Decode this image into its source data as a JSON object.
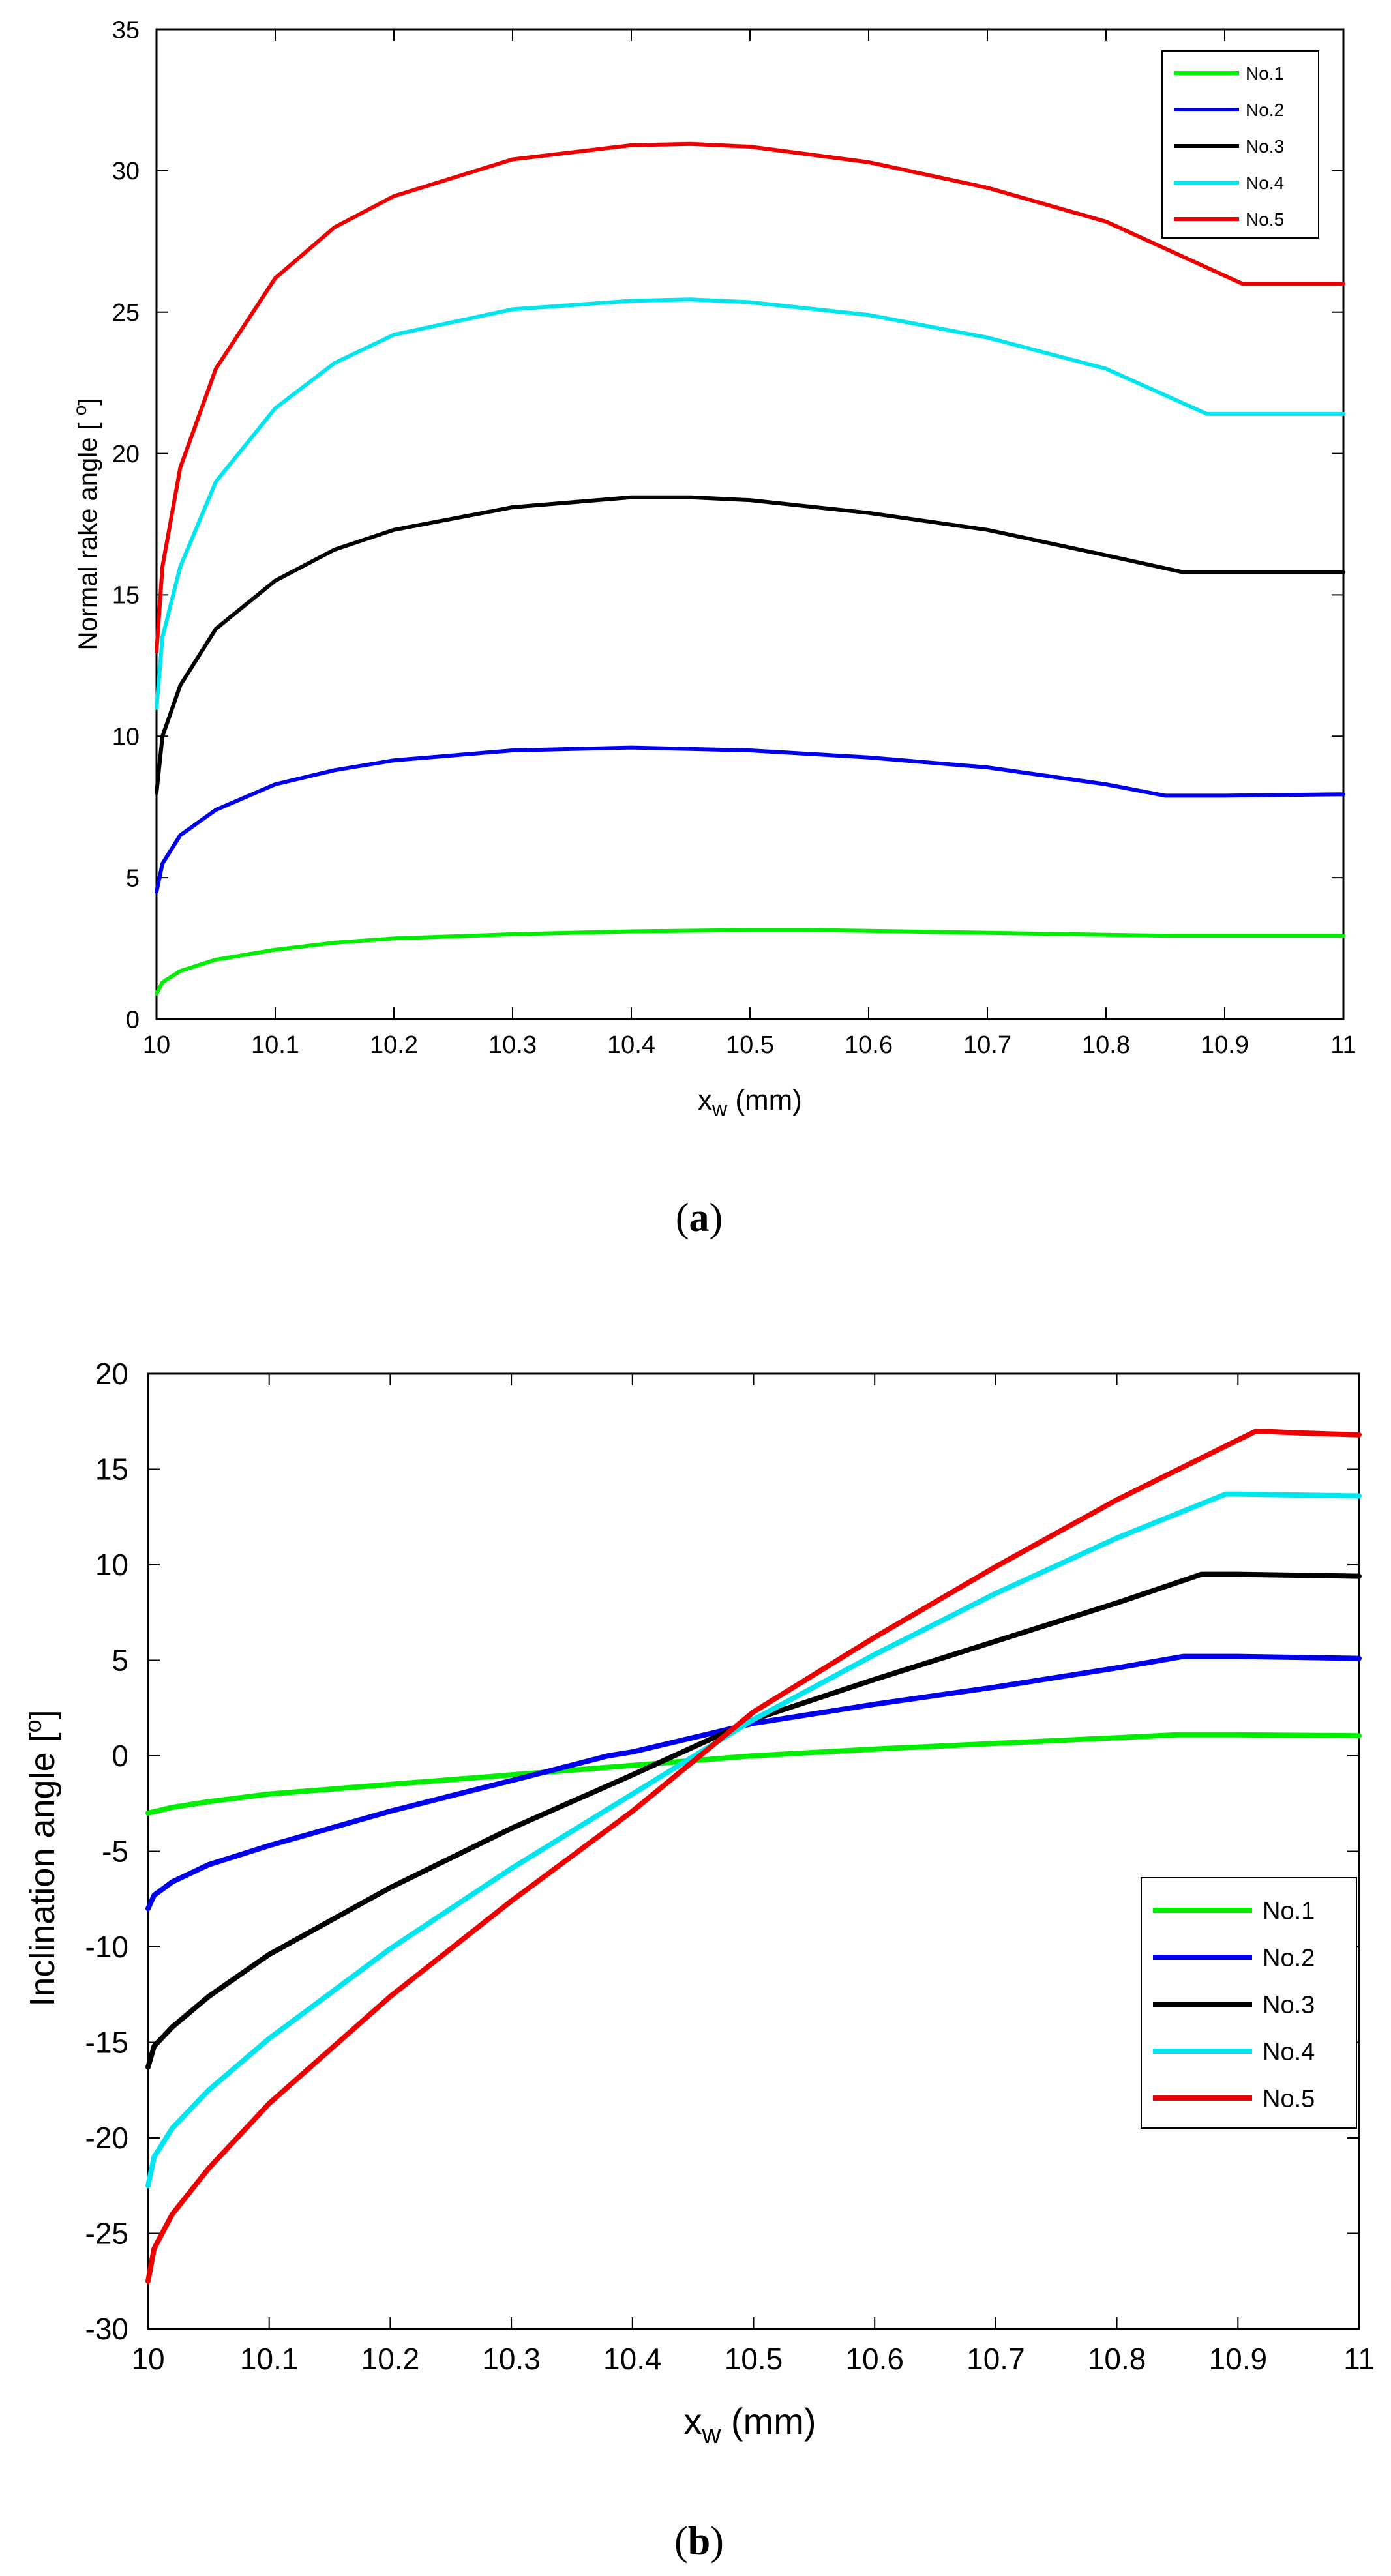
{
  "chart_data": [
    {
      "panel": "a",
      "type": "line",
      "caption_label": "a",
      "xlabel_main": "x",
      "xlabel_sub": "w",
      "xlabel_unit": " (mm)",
      "ylabel": "Normal rake angle [ ",
      "ylabel_sup": "o",
      "ylabel_end": "]",
      "xlim": [
        10,
        11
      ],
      "ylim": [
        0,
        35
      ],
      "xticks": [
        10,
        10.1,
        10.2,
        10.3,
        10.4,
        10.5,
        10.6,
        10.7,
        10.8,
        10.9,
        11
      ],
      "xtick_labels": [
        "10",
        "10.1",
        "10.2",
        "10.3",
        "10.4",
        "10.5",
        "10.6",
        "10.7",
        "10.8",
        "10.9",
        "11"
      ],
      "yticks": [
        0,
        5,
        10,
        15,
        20,
        25,
        30,
        35
      ],
      "ytick_labels": [
        "0",
        "5",
        "10",
        "15",
        "20",
        "25",
        "30",
        "35"
      ],
      "legend_position": "top-right",
      "series": [
        {
          "name": "No.1",
          "color": "#00ee00",
          "points": [
            [
              10,
              0.9
            ],
            [
              10.005,
              1.3
            ],
            [
              10.02,
              1.7
            ],
            [
              10.05,
              2.1
            ],
            [
              10.1,
              2.45
            ],
            [
              10.15,
              2.7
            ],
            [
              10.2,
              2.85
            ],
            [
              10.3,
              3.0
            ],
            [
              10.4,
              3.1
            ],
            [
              10.5,
              3.15
            ],
            [
              10.55,
              3.15
            ],
            [
              10.6,
              3.12
            ],
            [
              10.7,
              3.05
            ],
            [
              10.8,
              2.98
            ],
            [
              10.85,
              2.95
            ],
            [
              10.9,
              2.95
            ],
            [
              11,
              2.95
            ]
          ]
        },
        {
          "name": "No.2",
          "color": "#0000ee",
          "points": [
            [
              10,
              4.5
            ],
            [
              10.005,
              5.5
            ],
            [
              10.02,
              6.5
            ],
            [
              10.05,
              7.4
            ],
            [
              10.1,
              8.3
            ],
            [
              10.15,
              8.8
            ],
            [
              10.2,
              9.15
            ],
            [
              10.3,
              9.5
            ],
            [
              10.4,
              9.6
            ],
            [
              10.5,
              9.5
            ],
            [
              10.6,
              9.25
            ],
            [
              10.7,
              8.9
            ],
            [
              10.8,
              8.3
            ],
            [
              10.85,
              7.9
            ],
            [
              10.9,
              7.9
            ],
            [
              11,
              7.95
            ]
          ]
        },
        {
          "name": "No.3",
          "color": "#000000",
          "points": [
            [
              10,
              8.0
            ],
            [
              10.005,
              10.0
            ],
            [
              10.02,
              11.8
            ],
            [
              10.05,
              13.8
            ],
            [
              10.1,
              15.5
            ],
            [
              10.15,
              16.6
            ],
            [
              10.2,
              17.3
            ],
            [
              10.3,
              18.1
            ],
            [
              10.4,
              18.45
            ],
            [
              10.45,
              18.45
            ],
            [
              10.5,
              18.35
            ],
            [
              10.6,
              17.9
            ],
            [
              10.7,
              17.3
            ],
            [
              10.8,
              16.4
            ],
            [
              10.865,
              15.8
            ],
            [
              10.9,
              15.8
            ],
            [
              11,
              15.8
            ]
          ]
        },
        {
          "name": "No.4",
          "color": "#00e5ee",
          "points": [
            [
              10,
              11.0
            ],
            [
              10.005,
              13.5
            ],
            [
              10.02,
              16.0
            ],
            [
              10.05,
              19.0
            ],
            [
              10.1,
              21.6
            ],
            [
              10.15,
              23.2
            ],
            [
              10.2,
              24.2
            ],
            [
              10.3,
              25.1
            ],
            [
              10.4,
              25.4
            ],
            [
              10.45,
              25.45
            ],
            [
              10.5,
              25.35
            ],
            [
              10.6,
              24.9
            ],
            [
              10.7,
              24.1
            ],
            [
              10.8,
              23.0
            ],
            [
              10.885,
              21.4
            ],
            [
              10.9,
              21.4
            ],
            [
              11,
              21.4
            ]
          ]
        },
        {
          "name": "No.5",
          "color": "#ee0000",
          "points": [
            [
              10,
              13.0
            ],
            [
              10.005,
              16.0
            ],
            [
              10.02,
              19.5
            ],
            [
              10.05,
              23.0
            ],
            [
              10.1,
              26.2
            ],
            [
              10.15,
              28.0
            ],
            [
              10.2,
              29.1
            ],
            [
              10.3,
              30.4
            ],
            [
              10.4,
              30.9
            ],
            [
              10.45,
              30.95
            ],
            [
              10.5,
              30.85
            ],
            [
              10.6,
              30.3
            ],
            [
              10.7,
              29.4
            ],
            [
              10.8,
              28.2
            ],
            [
              10.915,
              26.0
            ],
            [
              10.95,
              26.0
            ],
            [
              11,
              26.0
            ]
          ]
        }
      ]
    },
    {
      "panel": "b",
      "type": "line",
      "caption_label": "b",
      "xlabel_main": "x",
      "xlabel_sub": "w",
      "xlabel_unit": " (mm)",
      "ylabel": "Inclination angle [",
      "ylabel_sup": "o",
      "ylabel_end": "]",
      "xlim": [
        10,
        11
      ],
      "ylim": [
        -30,
        20
      ],
      "xticks": [
        10,
        10.1,
        10.2,
        10.3,
        10.4,
        10.5,
        10.6,
        10.7,
        10.8,
        10.9,
        11
      ],
      "xtick_labels": [
        "10",
        "10.1",
        "10.2",
        "10.3",
        "10.4",
        "10.5",
        "10.6",
        "10.7",
        "10.8",
        "10.9",
        "11"
      ],
      "yticks": [
        -30,
        -25,
        -20,
        -15,
        -10,
        -5,
        0,
        5,
        10,
        15,
        20
      ],
      "ytick_labels": [
        "-30",
        "-25",
        "-20",
        "-15",
        "-10",
        "-5",
        "0",
        "5",
        "10",
        "15",
        "20"
      ],
      "legend_position": "lower-right",
      "series": [
        {
          "name": "No.1",
          "color": "#00ee00",
          "points": [
            [
              10,
              -3.0
            ],
            [
              10.02,
              -2.7
            ],
            [
              10.05,
              -2.4
            ],
            [
              10.1,
              -2.0
            ],
            [
              10.2,
              -1.5
            ],
            [
              10.3,
              -1.0
            ],
            [
              10.4,
              -0.5
            ],
            [
              10.5,
              0.0
            ],
            [
              10.6,
              0.35
            ],
            [
              10.7,
              0.65
            ],
            [
              10.8,
              0.95
            ],
            [
              10.85,
              1.1
            ],
            [
              10.9,
              1.1
            ],
            [
              11,
              1.05
            ]
          ]
        },
        {
          "name": "No.2",
          "color": "#0000ee",
          "points": [
            [
              10,
              -8.0
            ],
            [
              10.005,
              -7.3
            ],
            [
              10.02,
              -6.6
            ],
            [
              10.05,
              -5.7
            ],
            [
              10.1,
              -4.7
            ],
            [
              10.2,
              -2.9
            ],
            [
              10.3,
              -1.3
            ],
            [
              10.38,
              0.0
            ],
            [
              10.4,
              0.2
            ],
            [
              10.5,
              1.7
            ],
            [
              10.6,
              2.7
            ],
            [
              10.7,
              3.6
            ],
            [
              10.8,
              4.6
            ],
            [
              10.855,
              5.2
            ],
            [
              10.9,
              5.2
            ],
            [
              11,
              5.1
            ]
          ]
        },
        {
          "name": "No.3",
          "color": "#000000",
          "points": [
            [
              10,
              -16.3
            ],
            [
              10.005,
              -15.2
            ],
            [
              10.02,
              -14.2
            ],
            [
              10.05,
              -12.6
            ],
            [
              10.1,
              -10.4
            ],
            [
              10.2,
              -6.9
            ],
            [
              10.3,
              -3.8
            ],
            [
              10.4,
              -1.0
            ],
            [
              10.5,
              1.9
            ],
            [
              10.6,
              4.0
            ],
            [
              10.7,
              6.0
            ],
            [
              10.8,
              8.0
            ],
            [
              10.87,
              9.5
            ],
            [
              10.9,
              9.5
            ],
            [
              11,
              9.4
            ]
          ]
        },
        {
          "name": "No.4",
          "color": "#00e5ee",
          "points": [
            [
              10,
              -22.5
            ],
            [
              10.005,
              -21.0
            ],
            [
              10.02,
              -19.5
            ],
            [
              10.05,
              -17.5
            ],
            [
              10.1,
              -14.8
            ],
            [
              10.2,
              -10.1
            ],
            [
              10.3,
              -5.9
            ],
            [
              10.4,
              -2.0
            ],
            [
              10.5,
              1.9
            ],
            [
              10.6,
              5.3
            ],
            [
              10.7,
              8.5
            ],
            [
              10.8,
              11.4
            ],
            [
              10.89,
              13.7
            ],
            [
              10.9,
              13.7
            ],
            [
              11,
              13.6
            ]
          ]
        },
        {
          "name": "No.5",
          "color": "#ee0000",
          "points": [
            [
              10,
              -27.5
            ],
            [
              10.005,
              -25.8
            ],
            [
              10.02,
              -24.0
            ],
            [
              10.05,
              -21.6
            ],
            [
              10.1,
              -18.2
            ],
            [
              10.2,
              -12.6
            ],
            [
              10.3,
              -7.6
            ],
            [
              10.4,
              -2.9
            ],
            [
              10.5,
              2.3
            ],
            [
              10.6,
              6.2
            ],
            [
              10.7,
              9.9
            ],
            [
              10.8,
              13.4
            ],
            [
              10.915,
              17.0
            ],
            [
              10.95,
              16.9
            ],
            [
              11,
              16.8
            ]
          ]
        }
      ]
    }
  ]
}
